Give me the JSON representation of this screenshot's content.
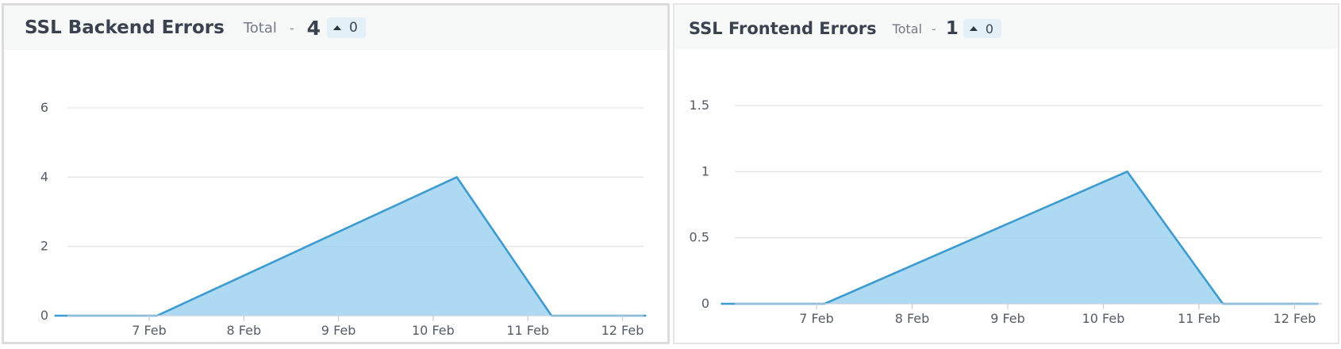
{
  "chart_data": [
    {
      "type": "area",
      "title": "SSL Backend Errors",
      "summary": {
        "total_label": "Total",
        "separator": "-",
        "total": "4",
        "delta": "0"
      },
      "x": [
        "2025-02-06",
        "2025-02-07 02:00",
        "2025-02-10 06:00",
        "2025-02-11 06:00",
        "2025-02-12 06:00"
      ],
      "x_tick_labels": [
        "7 Feb",
        "8 Feb",
        "9 Feb",
        "10 Feb",
        "11 Feb",
        "12 Feb"
      ],
      "y_ticks": [
        0,
        2,
        4,
        6
      ],
      "y_tick_labels": [
        "0",
        "2",
        "4",
        "6"
      ],
      "ylim": [
        0,
        6
      ],
      "series": [
        {
          "values": [
            0,
            0,
            4,
            0,
            0
          ]
        }
      ],
      "grid": true,
      "colors": {
        "line": "#3c9bd1",
        "fill": "#9fd2f1"
      }
    },
    {
      "type": "area",
      "title": "SSL Frontend Errors",
      "summary": {
        "total_label": "Total",
        "separator": "-",
        "total": "1",
        "delta": "0"
      },
      "x": [
        "2025-02-06",
        "2025-02-07 02:00",
        "2025-02-10 06:00",
        "2025-02-11 06:00",
        "2025-02-12 06:00"
      ],
      "x_tick_labels": [
        "7 Feb",
        "8 Feb",
        "9 Feb",
        "10 Feb",
        "11 Feb",
        "12 Feb"
      ],
      "y_ticks": [
        0,
        0.5,
        1,
        1.5
      ],
      "y_tick_labels": [
        "0",
        "0.5",
        "1",
        "1.5"
      ],
      "ylim": [
        0,
        1.5
      ],
      "series": [
        {
          "values": [
            0,
            0,
            1,
            0,
            0
          ]
        }
      ],
      "grid": true,
      "colors": {
        "line": "#3c9bd1",
        "fill": "#9fd2f1"
      }
    }
  ]
}
